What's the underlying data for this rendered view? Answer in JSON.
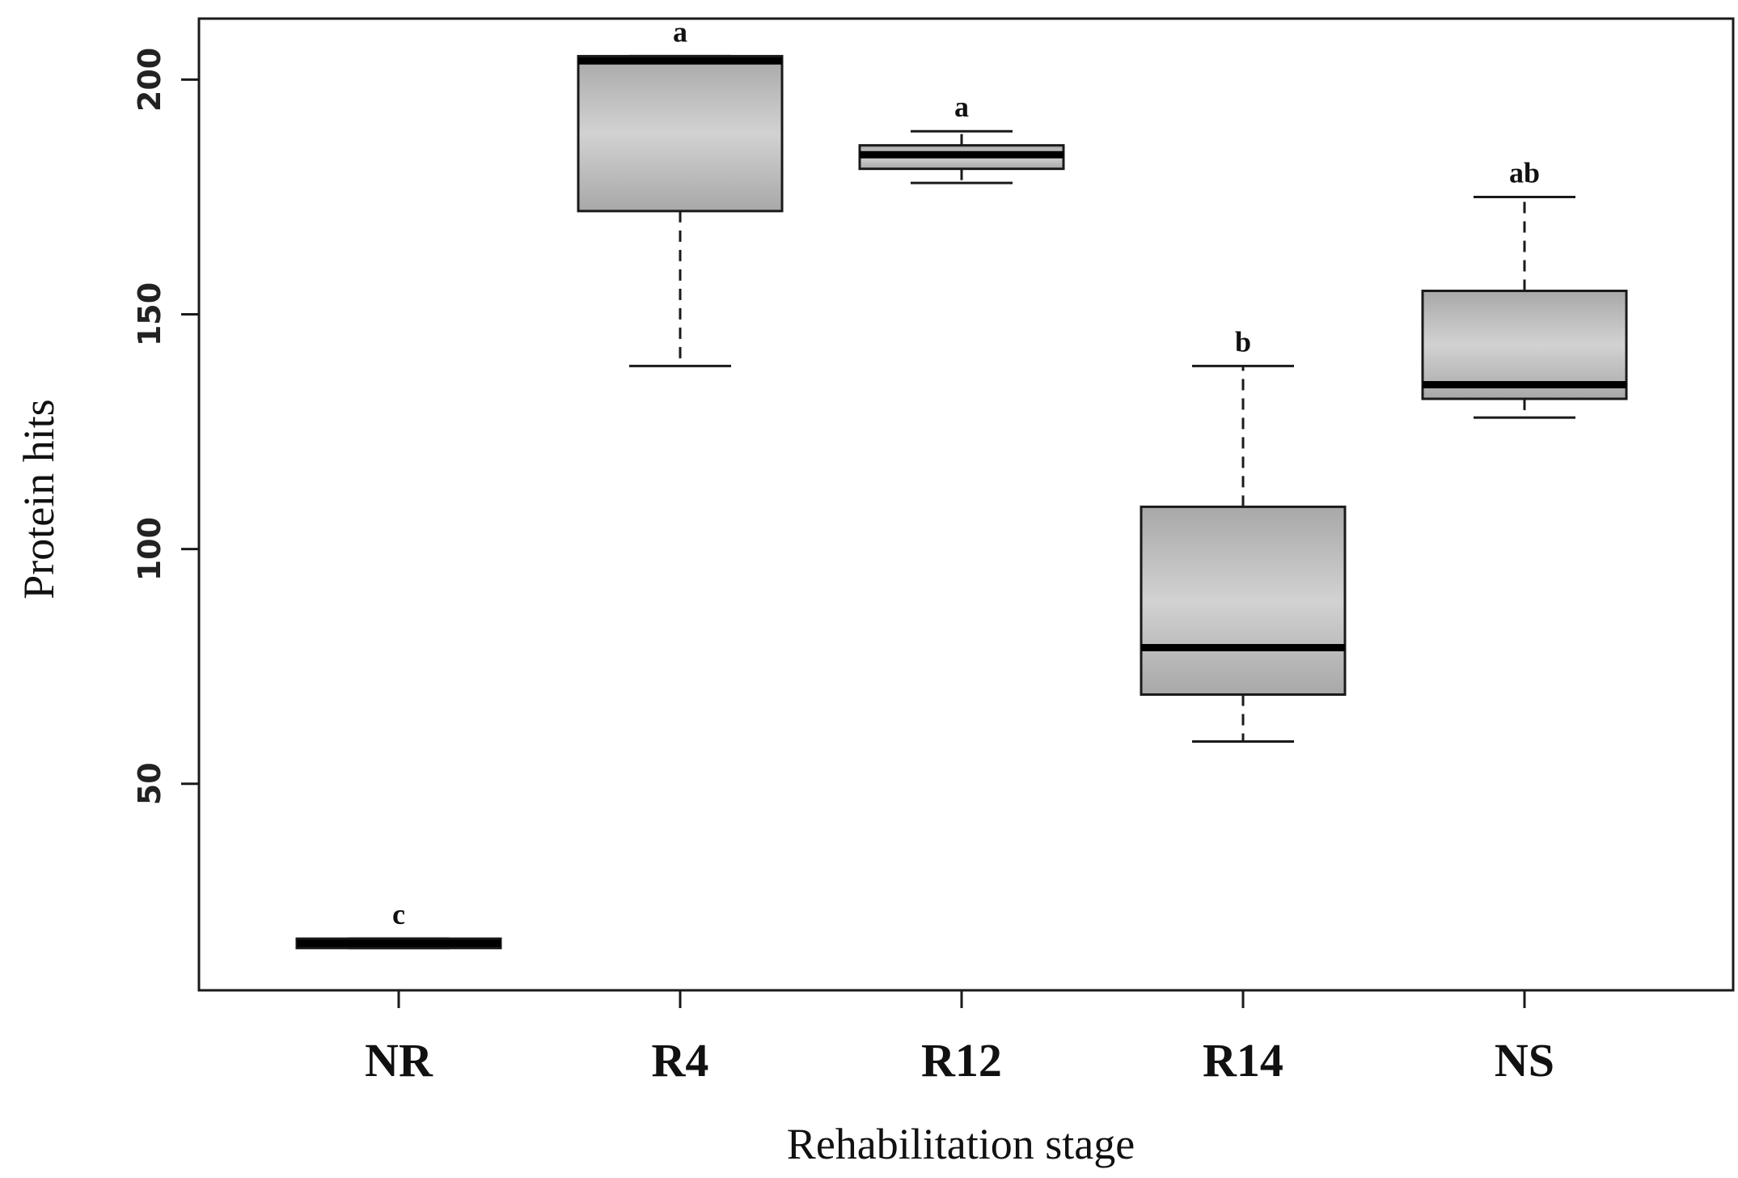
{
  "chart_data": {
    "type": "boxplot",
    "title": "",
    "xlabel": "Rehabilitation stage",
    "ylabel": "Protein hits",
    "ylim": [
      6,
      213
    ],
    "yticks": [
      50,
      100,
      150,
      200
    ],
    "categories": [
      "NR",
      "R4",
      "R12",
      "R14",
      "NS"
    ],
    "boxes": [
      {
        "label": "NR",
        "whisker_low": 15,
        "q1": 15,
        "median": 16,
        "q3": 17,
        "whisker_high": 17,
        "sig": "c"
      },
      {
        "label": "R4",
        "whisker_low": 139,
        "q1": 172,
        "median": 204,
        "q3": 205,
        "whisker_high": 205,
        "sig": "a"
      },
      {
        "label": "R12",
        "whisker_low": 178,
        "q1": 181,
        "median": 184,
        "q3": 186,
        "whisker_high": 189,
        "sig": "a"
      },
      {
        "label": "R14",
        "whisker_low": 59,
        "q1": 69,
        "median": 79,
        "q3": 109,
        "whisker_high": 139,
        "sig": "b"
      },
      {
        "label": "NS",
        "whisker_low": 128,
        "q1": 132,
        "median": 135,
        "q3": 155,
        "whisker_high": 175,
        "sig": "ab"
      }
    ],
    "colors": {
      "box_fill_center": "#d2d2d2",
      "box_fill_edge": "#a8a8a8",
      "stroke": "#1a1a1a"
    }
  }
}
